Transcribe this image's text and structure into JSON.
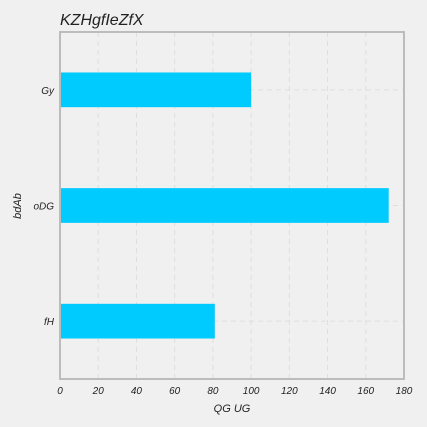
{
  "chart_data": {
    "type": "bar",
    "orientation": "horizontal",
    "title": "KZHgfIeZfX",
    "xlabel": "QG UG",
    "ylabel": "bdAb",
    "categories": [
      "Gy",
      "oDG",
      "fH"
    ],
    "values": [
      100,
      172,
      81
    ],
    "xlim": [
      0,
      180
    ],
    "xticks": [
      0,
      20,
      40,
      60,
      80,
      100,
      120,
      140,
      160,
      180
    ],
    "grid": true,
    "colors": {
      "bar": "#00cbfe",
      "background": "#f0f0f0",
      "frame": "#bcbcbc",
      "grid": "#dedede"
    }
  }
}
